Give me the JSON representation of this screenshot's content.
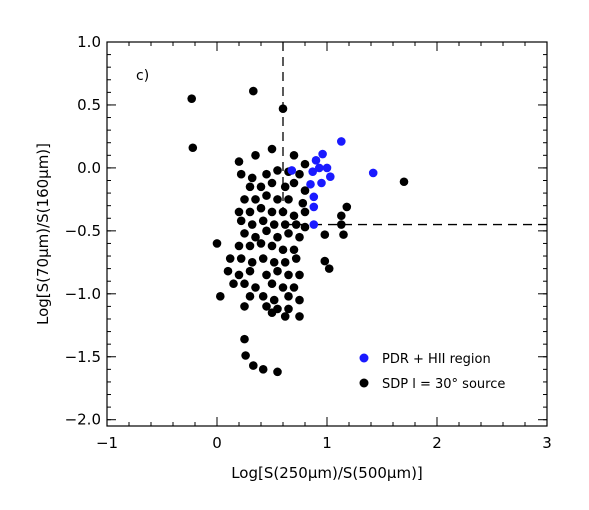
{
  "chart_data": {
    "type": "scatter",
    "panel_label": "c)",
    "xlabel": "Log[S(250µm)/S(500µm)]",
    "ylabel": "Log[S(70µm)/S(160µm)]",
    "xlim": [
      -1,
      3
    ],
    "ylim": [
      -2.05,
      1.0
    ],
    "x_ticks": [
      -1,
      0,
      1,
      2,
      3
    ],
    "x_tick_labels": [
      "−1",
      "0",
      "1",
      "2",
      "3"
    ],
    "y_ticks": [
      1.0,
      0.5,
      0.0,
      -0.5,
      -1.0,
      -1.5,
      -2.0
    ],
    "y_tick_labels": [
      "1.0",
      "0.5",
      "0.0",
      "−0.5",
      "−1.0",
      "−1.5",
      "−2.0"
    ],
    "threshold_x": 0.6,
    "threshold_y": -0.45,
    "legend_position": "bottom-right",
    "series": [
      {
        "name": "PDR + HII region",
        "color": "#1a1aff",
        "points": [
          [
            0.68,
            -0.02
          ],
          [
            0.87,
            -0.03
          ],
          [
            0.9,
            0.06
          ],
          [
            0.96,
            0.11
          ],
          [
            0.93,
            0.0
          ],
          [
            1.0,
            0.0
          ],
          [
            1.13,
            0.21
          ],
          [
            1.42,
            -0.04
          ],
          [
            0.85,
            -0.13
          ],
          [
            0.95,
            -0.12
          ],
          [
            1.03,
            -0.07
          ],
          [
            0.88,
            -0.23
          ],
          [
            0.88,
            -0.31
          ],
          [
            0.88,
            -0.45
          ]
        ]
      },
      {
        "name": "SDP l = 30° source",
        "color": "#000000",
        "points": [
          [
            -0.23,
            0.55
          ],
          [
            -0.22,
            0.16
          ],
          [
            0.33,
            0.61
          ],
          [
            0.6,
            0.47
          ],
          [
            0.0,
            -0.6
          ],
          [
            0.03,
            -1.02
          ],
          [
            0.25,
            -1.36
          ],
          [
            0.26,
            -1.49
          ],
          [
            0.33,
            -1.57
          ],
          [
            0.42,
            -1.6
          ],
          [
            0.55,
            -1.62
          ],
          [
            1.7,
            -0.11
          ],
          [
            1.18,
            -0.31
          ],
          [
            1.13,
            -0.38
          ],
          [
            1.13,
            -0.45
          ],
          [
            1.15,
            -0.53
          ],
          [
            0.98,
            -0.53
          ],
          [
            0.98,
            -0.74
          ],
          [
            1.02,
            -0.8
          ],
          [
            0.2,
            0.05
          ],
          [
            0.35,
            0.1
          ],
          [
            0.5,
            0.15
          ],
          [
            0.7,
            0.1
          ],
          [
            0.8,
            0.03
          ],
          [
            0.22,
            -0.05
          ],
          [
            0.32,
            -0.08
          ],
          [
            0.45,
            -0.05
          ],
          [
            0.55,
            -0.02
          ],
          [
            0.65,
            -0.03
          ],
          [
            0.75,
            -0.05
          ],
          [
            0.3,
            -0.15
          ],
          [
            0.4,
            -0.15
          ],
          [
            0.5,
            -0.12
          ],
          [
            0.62,
            -0.15
          ],
          [
            0.7,
            -0.12
          ],
          [
            0.8,
            -0.18
          ],
          [
            0.25,
            -0.25
          ],
          [
            0.35,
            -0.25
          ],
          [
            0.45,
            -0.22
          ],
          [
            0.55,
            -0.25
          ],
          [
            0.65,
            -0.25
          ],
          [
            0.78,
            -0.28
          ],
          [
            0.2,
            -0.35
          ],
          [
            0.3,
            -0.35
          ],
          [
            0.4,
            -0.32
          ],
          [
            0.5,
            -0.35
          ],
          [
            0.6,
            -0.35
          ],
          [
            0.7,
            -0.38
          ],
          [
            0.8,
            -0.35
          ],
          [
            0.22,
            -0.42
          ],
          [
            0.32,
            -0.45
          ],
          [
            0.42,
            -0.42
          ],
          [
            0.52,
            -0.45
          ],
          [
            0.62,
            -0.45
          ],
          [
            0.72,
            -0.45
          ],
          [
            0.8,
            -0.47
          ],
          [
            0.25,
            -0.52
          ],
          [
            0.35,
            -0.55
          ],
          [
            0.45,
            -0.5
          ],
          [
            0.55,
            -0.55
          ],
          [
            0.65,
            -0.52
          ],
          [
            0.75,
            -0.55
          ],
          [
            0.2,
            -0.62
          ],
          [
            0.3,
            -0.62
          ],
          [
            0.4,
            -0.6
          ],
          [
            0.5,
            -0.62
          ],
          [
            0.6,
            -0.65
          ],
          [
            0.7,
            -0.65
          ],
          [
            0.12,
            -0.72
          ],
          [
            0.22,
            -0.72
          ],
          [
            0.32,
            -0.75
          ],
          [
            0.42,
            -0.72
          ],
          [
            0.52,
            -0.75
          ],
          [
            0.62,
            -0.75
          ],
          [
            0.72,
            -0.72
          ],
          [
            0.1,
            -0.82
          ],
          [
            0.2,
            -0.85
          ],
          [
            0.3,
            -0.82
          ],
          [
            0.45,
            -0.85
          ],
          [
            0.55,
            -0.82
          ],
          [
            0.65,
            -0.85
          ],
          [
            0.75,
            -0.85
          ],
          [
            0.15,
            -0.92
          ],
          [
            0.25,
            -0.92
          ],
          [
            0.35,
            -0.95
          ],
          [
            0.5,
            -0.92
          ],
          [
            0.6,
            -0.95
          ],
          [
            0.7,
            -0.95
          ],
          [
            0.3,
            -1.02
          ],
          [
            0.42,
            -1.02
          ],
          [
            0.52,
            -1.05
          ],
          [
            0.65,
            -1.02
          ],
          [
            0.75,
            -1.05
          ],
          [
            0.25,
            -1.1
          ],
          [
            0.45,
            -1.1
          ],
          [
            0.55,
            -1.12
          ],
          [
            0.65,
            -1.12
          ],
          [
            0.75,
            -1.18
          ],
          [
            0.5,
            -1.15
          ],
          [
            0.62,
            -1.18
          ]
        ]
      }
    ]
  }
}
